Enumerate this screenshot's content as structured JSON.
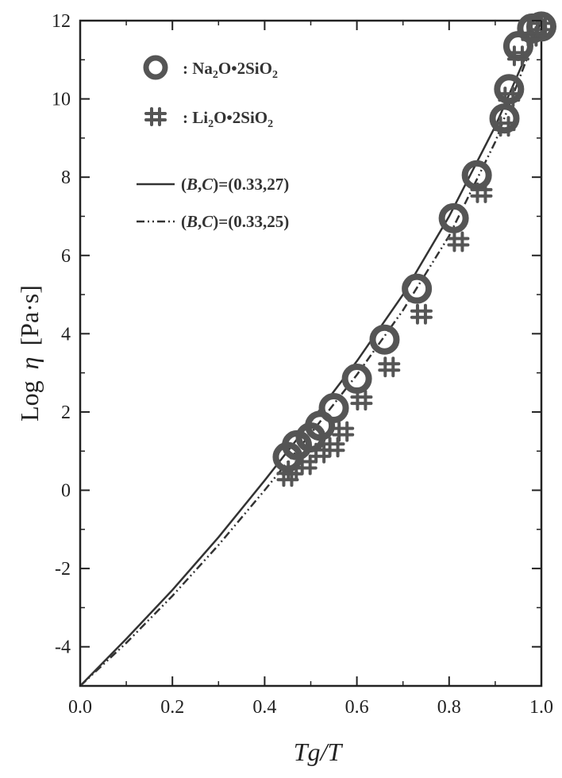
{
  "chart_data": {
    "type": "scatter",
    "xlabel": "Tg/T",
    "ylabel_main": "Log",
    "ylabel_symbol": "η",
    "ylabel_unit": "[Pa·s]",
    "xlim": [
      0.0,
      1.0
    ],
    "ylim": [
      -5,
      12
    ],
    "x_ticks": [
      "0.0",
      "0.2",
      "0.4",
      "0.6",
      "0.8",
      "1.0"
    ],
    "y_ticks": [
      "-4",
      "-2",
      "0",
      "2",
      "4",
      "6",
      "8",
      "10",
      "12"
    ],
    "series": [
      {
        "name": "Na2O•2SiO2",
        "marker": "circle",
        "x": [
          0.45,
          0.47,
          0.5,
          0.52,
          0.55,
          0.6,
          0.66,
          0.73,
          0.81,
          0.86,
          0.92,
          0.93,
          0.95,
          0.98,
          1.0
        ],
        "y": [
          0.85,
          1.15,
          1.35,
          1.65,
          2.1,
          2.85,
          3.85,
          5.15,
          6.95,
          8.05,
          9.5,
          10.25,
          11.35,
          11.8,
          11.85
        ]
      },
      {
        "name": "Li2O•2SiO2",
        "marker": "hash",
        "x": [
          0.45,
          0.46,
          0.49,
          0.52,
          0.55,
          0.57,
          0.61,
          0.67,
          0.74,
          0.82,
          0.87,
          0.92,
          0.93,
          0.95,
          0.98,
          1.0
        ],
        "y": [
          0.35,
          0.5,
          0.65,
          0.95,
          1.1,
          1.5,
          2.3,
          3.15,
          4.5,
          6.35,
          7.6,
          9.3,
          10.05,
          11.1,
          11.6,
          11.85
        ]
      },
      {
        "name": "(B,C)=(0.33,27)",
        "style": "solid",
        "x": [
          0.0,
          0.1,
          0.2,
          0.3,
          0.4,
          0.5,
          0.6,
          0.7,
          0.8,
          0.9,
          1.0
        ],
        "y": [
          -5.0,
          -3.8,
          -2.55,
          -1.2,
          0.25,
          1.75,
          3.3,
          5.0,
          7.0,
          9.3,
          12.0
        ]
      },
      {
        "name": "(B,C)=(0.33,25)",
        "style": "dash-dot-dot",
        "x": [
          0.0,
          0.1,
          0.2,
          0.3,
          0.4,
          0.5,
          0.6,
          0.7,
          0.8,
          0.9,
          1.0
        ],
        "y": [
          -5.0,
          -3.9,
          -2.7,
          -1.4,
          0.0,
          1.45,
          2.95,
          4.6,
          6.5,
          8.9,
          12.0
        ]
      }
    ],
    "legend": {
      "placement": "top-left",
      "entries": [
        {
          "marker": "circle",
          "prefix": ": Na",
          "sub1": "2",
          "mid": "O•2SiO",
          "sub2": "2"
        },
        {
          "marker": "hash",
          "prefix": ": Li",
          "sub1": "2",
          "mid": "O•2SiO",
          "sub2": "2"
        },
        {
          "line": "solid",
          "open": "(",
          "b": "B",
          "comma": ",",
          "c": "C",
          "close": ")=(0.33,27)"
        },
        {
          "line": "dash-dot-dot",
          "open": "(",
          "b": "B",
          "comma": ",",
          "c": "C",
          "close": ")=(0.33,25)"
        }
      ]
    },
    "colors": {
      "marker": "#555555",
      "line": "#333333",
      "axis": "#222222"
    }
  }
}
